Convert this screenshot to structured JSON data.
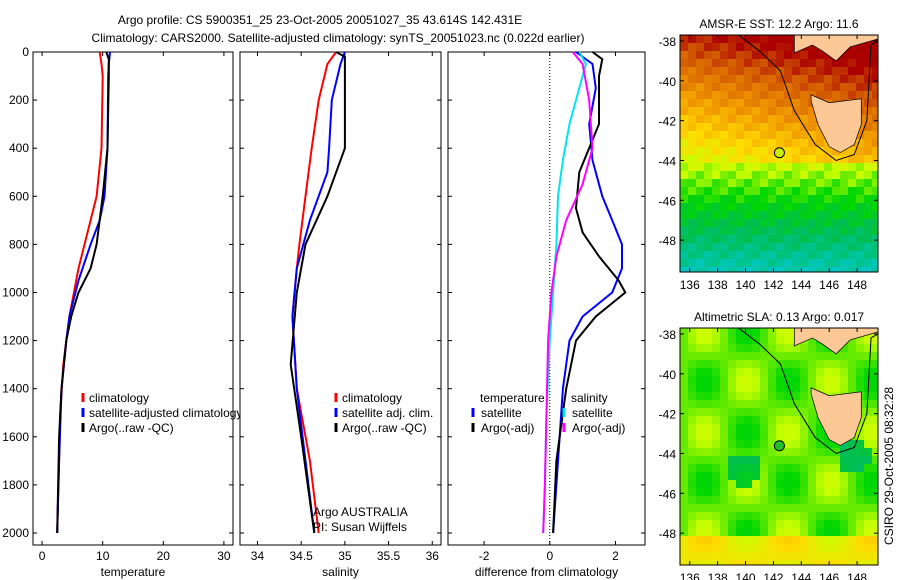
{
  "title": {
    "line1": "Argo profile: CS 5900351_25 23-Oct-2005 20051027_35 43.614S 142.431E",
    "line2": "Climatology: CARS2000. Satellite-adjusted climatology: synTS_20051023.nc (0.022d earlier)"
  },
  "footer": {
    "agency": "Argo AUSTRALIA",
    "pi": "PI: Susan Wijffels",
    "stamp": "CSIRO 29-Oct-2005 08:32:28"
  },
  "chart_data": [
    {
      "type": "line",
      "id": "temperature",
      "xlabel": "temperature",
      "ylabel": "",
      "xlim": [
        -1.5,
        31.5
      ],
      "ylim": [
        2050,
        0
      ],
      "xticks": [
        0,
        10,
        20,
        30
      ],
      "yticks": [
        0,
        200,
        400,
        600,
        800,
        1000,
        1200,
        1400,
        1600,
        1800,
        2000
      ],
      "legend": {
        "placement": "lower-left",
        "entries": [
          "climatology",
          "satellite-adjusted climatology",
          "Argo(..raw -QC)"
        ]
      },
      "series": [
        {
          "name": "climatology",
          "color": "#ff0000",
          "depth": [
            0,
            50,
            100,
            400,
            600,
            700,
            900,
            1100,
            1200,
            1300,
            1500,
            1700,
            2000
          ],
          "values": [
            9.5,
            9.8,
            10,
            9.8,
            9,
            8,
            6,
            4.5,
            4,
            3.5,
            3,
            2.8,
            2.5
          ]
        },
        {
          "name": "satellite-adjusted climatology",
          "color": "#0000ff",
          "depth": [
            0,
            50,
            100,
            400,
            600,
            700,
            800,
            950,
            1100,
            1200,
            1400,
            1700,
            2000
          ],
          "values": [
            11.2,
            11,
            10.9,
            10.8,
            10.3,
            9.5,
            8,
            6,
            4.5,
            4,
            3.2,
            2.8,
            2.5
          ]
        },
        {
          "name": "Argo(..raw -QC)",
          "color": "#000000",
          "depth": [
            0,
            30,
            100,
            400,
            600,
            800,
            900,
            1000,
            1100,
            1200,
            1400,
            1600,
            2000
          ],
          "values": [
            10.6,
            11,
            11,
            10.8,
            10,
            9,
            8,
            6,
            4.8,
            4,
            3.2,
            2.8,
            2.5
          ]
        }
      ]
    },
    {
      "type": "line",
      "id": "salinity",
      "xlabel": "salinity",
      "xlim": [
        33.8,
        36.1
      ],
      "ylim": [
        2050,
        0
      ],
      "xticks": [
        34,
        34.5,
        35,
        35.5,
        36
      ],
      "legend": {
        "placement": "lower-right",
        "entries": [
          "climatology",
          "satellite adj. clim.",
          "Argo(..raw -QC)"
        ]
      },
      "series": [
        {
          "name": "climatology",
          "color": "#ff0000",
          "depth": [
            0,
            50,
            200,
            400,
            600,
            800,
            900,
            1100,
            1400,
            1700,
            2000
          ],
          "values": [
            34.9,
            34.8,
            34.7,
            34.62,
            34.55,
            34.48,
            34.45,
            34.4,
            34.45,
            34.6,
            34.7
          ]
        },
        {
          "name": "satellite adj. clim.",
          "color": "#0000ff",
          "depth": [
            0,
            50,
            200,
            400,
            500,
            700,
            900,
            1100,
            1400,
            1700,
            2000
          ],
          "values": [
            35.0,
            34.95,
            34.85,
            34.82,
            34.8,
            34.6,
            34.45,
            34.4,
            34.45,
            34.55,
            34.65
          ]
        },
        {
          "name": "Argo(..raw -QC)",
          "color": "#000000",
          "depth": [
            0,
            20,
            60,
            400,
            600,
            800,
            1000,
            1300,
            1600,
            2000
          ],
          "values": [
            34.9,
            35.0,
            35.0,
            35.0,
            34.8,
            34.55,
            34.45,
            34.38,
            34.5,
            34.65
          ]
        }
      ]
    },
    {
      "type": "line",
      "id": "difference",
      "xlabel": "difference from climatology",
      "xlim": [
        -3.1,
        2.9
      ],
      "ylim": [
        2050,
        0
      ],
      "xticks": [
        -2,
        0,
        2
      ],
      "zero_line": true,
      "legend": {
        "placement": "lower-center",
        "groups": [
          "temperature",
          "salinity"
        ],
        "entries": [
          "satellite",
          "Argo(-adj)",
          "satellite",
          "Argo(-adj)"
        ]
      },
      "series": [
        {
          "group": "temperature",
          "name": "satellite",
          "color": "#0000ff",
          "depth": [
            0,
            50,
            150,
            300,
            450,
            600,
            700,
            800,
            900,
            1000,
            1100,
            1200,
            1400,
            1800,
            2000
          ],
          "values": [
            0.8,
            1.3,
            1.4,
            1.2,
            1.3,
            1.6,
            1.9,
            2.2,
            2.2,
            1.9,
            1.0,
            0.6,
            0.4,
            0.2,
            0.1
          ]
        },
        {
          "group": "temperature",
          "name": "Argo(-adj)",
          "color": "#000000",
          "depth": [
            0,
            30,
            100,
            300,
            500,
            650,
            750,
            850,
            950,
            1000,
            1100,
            1200,
            1400,
            1700,
            2000
          ],
          "values": [
            1.3,
            1.6,
            1.5,
            1.5,
            0.9,
            0.8,
            1.0,
            1.5,
            2.1,
            2.3,
            1.4,
            0.8,
            0.5,
            0.2,
            0.1
          ]
        },
        {
          "group": "salinity",
          "name": "satellite",
          "color": "#00e5ee",
          "depth": [
            0,
            50,
            200,
            300,
            450,
            600,
            800,
            1000,
            1200,
            1500,
            1800,
            2000
          ],
          "values": [
            0.9,
            1.1,
            0.8,
            0.6,
            0.4,
            0.25,
            0.2,
            0.1,
            0.0,
            -0.1,
            -0.15,
            -0.2
          ]
        },
        {
          "group": "salinity",
          "name": "Argo(-adj)",
          "color": "#ff00ff",
          "depth": [
            0,
            50,
            200,
            400,
            550,
            700,
            850,
            1000,
            1200,
            1500,
            1800,
            2000
          ],
          "values": [
            0.7,
            1.0,
            1.2,
            1.3,
            1.0,
            0.5,
            0.2,
            0.05,
            -0.05,
            -0.1,
            -0.15,
            -0.2
          ]
        }
      ]
    },
    {
      "type": "heatmap",
      "id": "sst-map",
      "title": "AMSR-E SST: 12.2 Argo: 11.6",
      "xlim": [
        135.3,
        149.5
      ],
      "ylim": [
        -49.6,
        -37.7
      ],
      "xticks": [
        136,
        138,
        140,
        142,
        144,
        146,
        148
      ],
      "yticks": [
        -38,
        -40,
        -42,
        -44,
        -46,
        -48
      ],
      "marker": {
        "lon": 142.43,
        "lat": -43.61
      }
    },
    {
      "type": "heatmap",
      "id": "sla-map",
      "title": "Altimetric SLA: 0.13 Argo: 0.017",
      "xlim": [
        135.3,
        149.5
      ],
      "ylim": [
        -49.6,
        -37.7
      ],
      "xticks": [
        136,
        138,
        140,
        142,
        144,
        146,
        148
      ],
      "yticks": [
        -38,
        -40,
        -42,
        -44,
        -46,
        -48
      ],
      "marker": {
        "lon": 142.43,
        "lat": -43.61
      }
    }
  ]
}
